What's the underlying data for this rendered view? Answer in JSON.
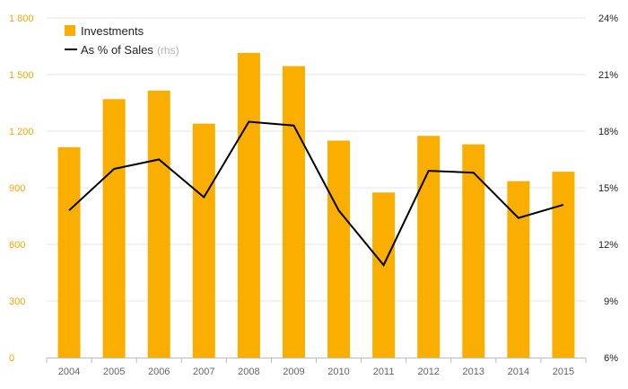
{
  "chart_data": {
    "type": "bar",
    "categories": [
      "2004",
      "2005",
      "2006",
      "2007",
      "2008",
      "2009",
      "2010",
      "2011",
      "2012",
      "2013",
      "2014",
      "2015"
    ],
    "series": [
      {
        "name": "Investments",
        "type": "bar",
        "axis": "left",
        "color": "#f9ae00",
        "values": [
          1115,
          1370,
          1415,
          1240,
          1615,
          1545,
          1150,
          875,
          1175,
          1130,
          935,
          985
        ]
      },
      {
        "name": "As % of Sales",
        "name_suffix": "(rhs)",
        "type": "line",
        "axis": "right",
        "color": "#000000",
        "values": [
          13.8,
          16.0,
          16.5,
          14.5,
          18.5,
          18.3,
          13.8,
          10.9,
          15.9,
          15.8,
          13.4,
          14.1
        ]
      }
    ],
    "y_left": {
      "lim": [
        0,
        1800
      ],
      "ticks": [
        0,
        300,
        600,
        900,
        1200,
        1500,
        1800
      ],
      "tick_labels": [
        "0",
        "300",
        "600",
        "900",
        "1 200",
        "1 500",
        "1 800"
      ],
      "color": "#f5a800"
    },
    "y_right": {
      "lim": [
        6,
        24
      ],
      "ticks": [
        6,
        9,
        12,
        15,
        18,
        21,
        24
      ],
      "tick_labels": [
        "6%",
        "9%",
        "12%",
        "15%",
        "18%",
        "21%",
        "24%"
      ]
    },
    "grid": true,
    "legend": {
      "placement": "top-left"
    },
    "title": "",
    "xlabel": "",
    "ylabel": ""
  }
}
